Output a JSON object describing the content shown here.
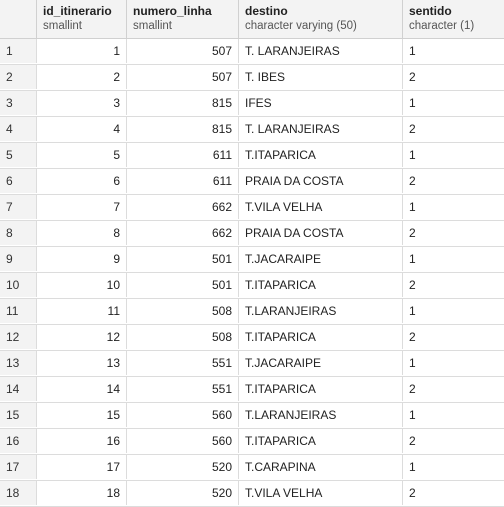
{
  "columns": [
    {
      "name": "id_itinerario",
      "type": "smallint"
    },
    {
      "name": "numero_linha",
      "type": "smallint"
    },
    {
      "name": "destino",
      "type": "character varying (50)"
    },
    {
      "name": "sentido",
      "type": "character (1)"
    }
  ],
  "rows": [
    {
      "n": "1",
      "id": "1",
      "linha": "507",
      "destino": "T. LARANJEIRAS",
      "sentido": "1"
    },
    {
      "n": "2",
      "id": "2",
      "linha": "507",
      "destino": "T. IBES",
      "sentido": "2"
    },
    {
      "n": "3",
      "id": "3",
      "linha": "815",
      "destino": "IFES",
      "sentido": "1"
    },
    {
      "n": "4",
      "id": "4",
      "linha": "815",
      "destino": "T. LARANJEIRAS",
      "sentido": "2"
    },
    {
      "n": "5",
      "id": "5",
      "linha": "611",
      "destino": "T.ITAPARICA",
      "sentido": "1"
    },
    {
      "n": "6",
      "id": "6",
      "linha": "611",
      "destino": "PRAIA DA COSTA",
      "sentido": "2"
    },
    {
      "n": "7",
      "id": "7",
      "linha": "662",
      "destino": "T.VILA VELHA",
      "sentido": "1"
    },
    {
      "n": "8",
      "id": "8",
      "linha": "662",
      "destino": "PRAIA DA COSTA",
      "sentido": "2"
    },
    {
      "n": "9",
      "id": "9",
      "linha": "501",
      "destino": "T.JACARAIPE",
      "sentido": "1"
    },
    {
      "n": "10",
      "id": "10",
      "linha": "501",
      "destino": "T.ITAPARICA",
      "sentido": "2"
    },
    {
      "n": "11",
      "id": "11",
      "linha": "508",
      "destino": "T.LARANJEIRAS",
      "sentido": "1"
    },
    {
      "n": "12",
      "id": "12",
      "linha": "508",
      "destino": "T.ITAPARICA",
      "sentido": "2"
    },
    {
      "n": "13",
      "id": "13",
      "linha": "551",
      "destino": "T.JACARAIPE",
      "sentido": "1"
    },
    {
      "n": "14",
      "id": "14",
      "linha": "551",
      "destino": "T.ITAPARICA",
      "sentido": "2"
    },
    {
      "n": "15",
      "id": "15",
      "linha": "560",
      "destino": "T.LARANJEIRAS",
      "sentido": "1"
    },
    {
      "n": "16",
      "id": "16",
      "linha": "560",
      "destino": "T.ITAPARICA",
      "sentido": "2"
    },
    {
      "n": "17",
      "id": "17",
      "linha": "520",
      "destino": "T.CARAPINA",
      "sentido": "1"
    },
    {
      "n": "18",
      "id": "18",
      "linha": "520",
      "destino": "T.VILA VELHA",
      "sentido": "2"
    }
  ]
}
